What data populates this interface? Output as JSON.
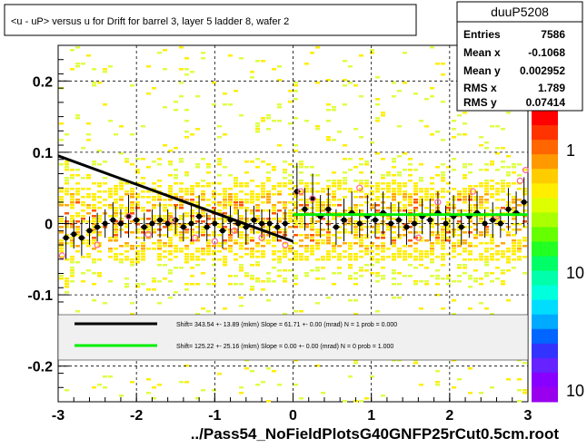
{
  "title": "<u - uP>       versus   u for Drift for barrel 3, layer 5 ladder 8, wafer 2",
  "footer": "../Pass54_NoFieldPlotsG40GNFP25rCut0.5cm.root",
  "stats": {
    "name": "duuP5208",
    "rows": [
      {
        "label": "Entries",
        "value": "7586"
      },
      {
        "label": "Mean x",
        "value": "-0.1068"
      },
      {
        "label": "Mean y",
        "value": "0.002952"
      },
      {
        "label": "RMS x",
        "value": "1.789"
      },
      {
        "label": "RMS y",
        "value": "0.07414"
      }
    ]
  },
  "legend": [
    {
      "color": "#000000",
      "text": "Shift=   343.54 +- 13.89 (mkm) Slope =   61.71 +- 0.00 (mrad)  N = 1 prob = 0.000"
    },
    {
      "color": "#00ee00",
      "text": "Shift=   125.22 +- 25.16 (mkm) Slope =    0.00 +- 0.00 (mrad)  N = 0 prob = 1.000"
    }
  ],
  "colors": {
    "black_fit": "#000000",
    "green_fit": "#00ee00",
    "profile": "#000000",
    "open_markers": "#ff6699"
  },
  "chart_data": {
    "type": "heatmap",
    "xlim": [
      -3,
      3
    ],
    "ylim": [
      -0.25,
      0.25
    ],
    "x_ticks": [
      "-3",
      "-2",
      "-1",
      "0",
      "1",
      "2",
      "3"
    ],
    "y_ticks": [
      "-0.2",
      "-0.1",
      "0",
      "0.1",
      "0.2"
    ],
    "z_ticks": [
      "1",
      "10",
      "10"
    ],
    "grid": true,
    "fits": [
      {
        "x": [
          -3.0,
          0.0
        ],
        "y": [
          0.095,
          -0.025
        ]
      },
      {
        "x": [
          0.0,
          3.0
        ],
        "y": [
          0.0125,
          0.0125
        ]
      }
    ],
    "profile": {
      "x": [
        -2.9,
        -2.8,
        -2.7,
        -2.6,
        -2.5,
        -2.4,
        -2.3,
        -2.2,
        -2.1,
        -2.0,
        -1.9,
        -1.8,
        -1.7,
        -1.6,
        -1.5,
        -1.4,
        -1.3,
        -1.2,
        -1.1,
        -1.0,
        -0.9,
        -0.8,
        -0.7,
        -0.6,
        -0.5,
        -0.4,
        -0.3,
        -0.2,
        -0.1,
        0.05,
        0.15,
        0.25,
        0.35,
        0.45,
        0.55,
        0.65,
        0.75,
        0.85,
        0.95,
        1.05,
        1.15,
        1.25,
        1.35,
        1.45,
        1.55,
        1.65,
        1.75,
        1.85,
        1.95,
        2.05,
        2.15,
        2.25,
        2.35,
        2.45,
        2.55,
        2.65,
        2.75,
        2.85,
        2.95
      ],
      "y": [
        -0.02,
        -0.015,
        -0.02,
        -0.01,
        -0.005,
        0.0,
        0.005,
        0.0,
        0.01,
        0.005,
        -0.005,
        0.0,
        0.005,
        0.0,
        0.005,
        -0.005,
        0.0,
        0.01,
        -0.005,
        0.0,
        -0.01,
        0.005,
        0.0,
        -0.005,
        0.005,
        0.0,
        0.0,
        -0.005,
        0.0,
        0.045,
        0.02,
        0.035,
        0.01,
        0.02,
        -0.005,
        0.005,
        0.015,
        0.0,
        0.01,
        0.005,
        0.015,
        0.0,
        0.005,
        -0.005,
        0.0,
        0.01,
        0.005,
        0.015,
        0.0,
        0.01,
        -0.005,
        0.01,
        0.015,
        0.0,
        0.005,
        0.0,
        0.02,
        0.015,
        0.03
      ],
      "err": [
        0.03,
        0.02,
        0.025,
        0.02,
        0.02,
        0.02,
        0.025,
        0.02,
        0.03,
        0.02,
        0.02,
        0.02,
        0.025,
        0.02,
        0.02,
        0.02,
        0.025,
        0.03,
        0.02,
        0.02,
        0.025,
        0.02,
        0.02,
        0.025,
        0.02,
        0.02,
        0.02,
        0.02,
        0.02,
        0.04,
        0.03,
        0.035,
        0.03,
        0.03,
        0.025,
        0.03,
        0.03,
        0.02,
        0.03,
        0.025,
        0.03,
        0.03,
        0.025,
        0.025,
        0.02,
        0.025,
        0.03,
        0.03,
        0.025,
        0.03,
        0.025,
        0.03,
        0.03,
        0.02,
        0.025,
        0.02,
        0.03,
        0.03,
        0.035
      ]
    },
    "open_markers": {
      "x": [
        -2.95,
        -2.5,
        -2.1,
        -1.85,
        -1.55,
        -1.25,
        -1.0,
        -0.75,
        -0.4,
        -0.1,
        0.1,
        0.25,
        0.85,
        1.6,
        1.85,
        2.3,
        2.6,
        2.9,
        2.97
      ],
      "y": [
        -0.045,
        -0.03,
        0.01,
        -0.015,
        0.005,
        -0.02,
        -0.025,
        -0.01,
        -0.02,
        -0.03,
        0.045,
        0.035,
        0.05,
        -0.02,
        0.03,
        0.045,
        0.01,
        0.06,
        0.075
      ]
    }
  }
}
